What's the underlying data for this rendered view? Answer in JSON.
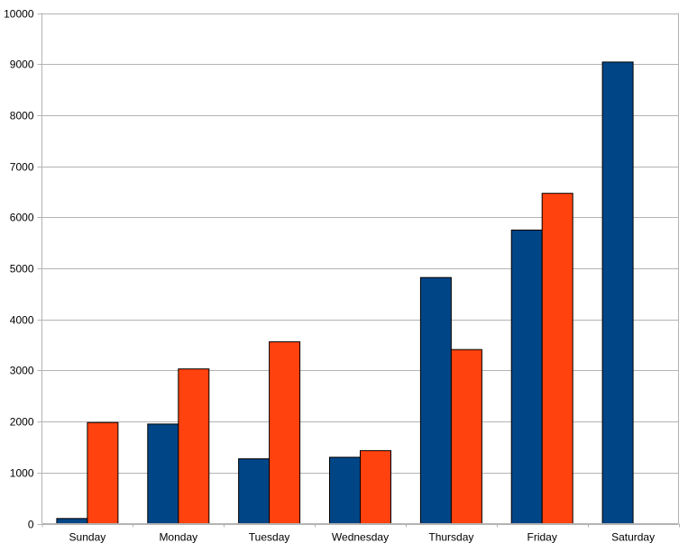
{
  "chart_data": {
    "type": "bar",
    "title": "",
    "xlabel": "",
    "ylabel": "",
    "categories": [
      "Sunday",
      "Monday",
      "Tuesday",
      "Wednesday",
      "Thursday",
      "Friday",
      "Saturday"
    ],
    "series": [
      {
        "name": "series-1",
        "color": "#004586",
        "values": [
          100,
          1950,
          1270,
          1300,
          4820,
          5750,
          9040
        ]
      },
      {
        "name": "series-2",
        "color": "#FF420E",
        "values": [
          1980,
          3030,
          3560,
          1430,
          3410,
          6470,
          null
        ]
      }
    ],
    "ylim": [
      0,
      10000
    ],
    "ytick_step": 1000,
    "ytick_labels": [
      "0",
      "1000",
      "2000",
      "3000",
      "4000",
      "5000",
      "6000",
      "7000",
      "8000",
      "9000",
      "10000"
    ],
    "grid": "horizontal",
    "legend_position": "none",
    "background_color": "#ffffff",
    "gridline_color": "#b3b3b3",
    "axis_color": "#b3b3b3",
    "bar_border_color": "#000000",
    "text_color": "#000000"
  }
}
